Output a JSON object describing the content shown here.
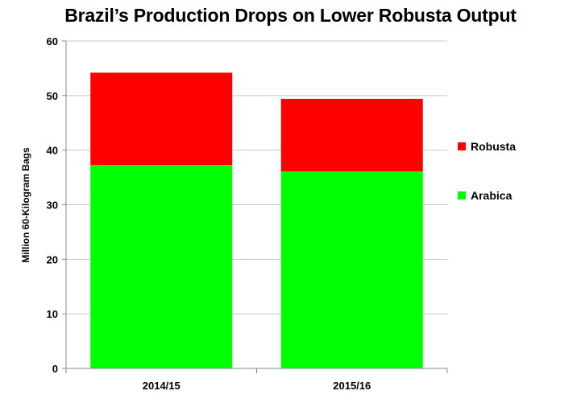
{
  "chart_data": {
    "type": "bar",
    "stacked": true,
    "title": "Brazil’s Production Drops on Lower Robusta Output",
    "xlabel": "",
    "ylabel": "Million 60-Kilogram Bags",
    "categories": [
      "2014/15",
      "2015/16"
    ],
    "series": [
      {
        "name": "Arabica",
        "color": "#00ff00",
        "values": [
          37.3,
          36.1
        ]
      },
      {
        "name": "Robusta",
        "color": "#ff0000",
        "values": [
          16.9,
          13.3
        ]
      }
    ],
    "ylim": [
      0,
      60
    ],
    "yticks": [
      0,
      10,
      20,
      30,
      40,
      50,
      60
    ],
    "grid": true,
    "legend": "right"
  }
}
